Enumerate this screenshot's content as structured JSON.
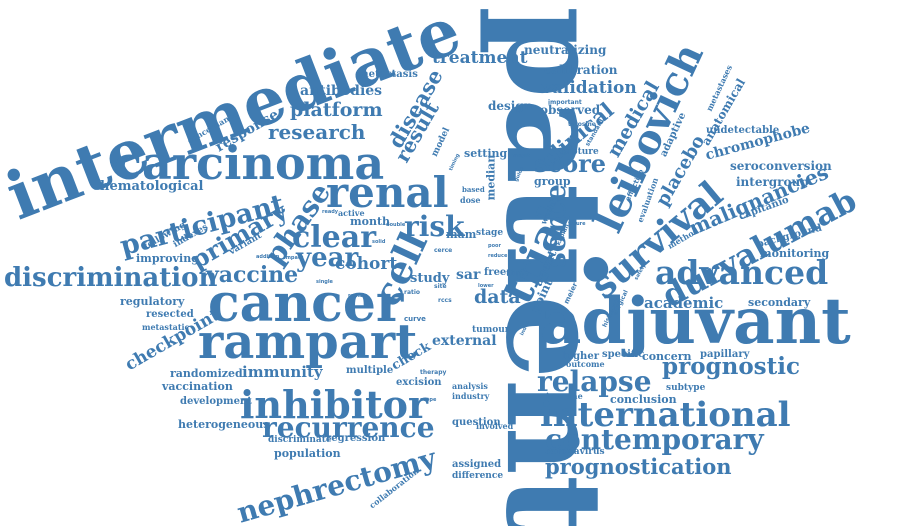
{
  "title": "",
  "color": "#3f7bb1",
  "words": [
    {
      "text": "patient"
    },
    {
      "text": "intermediate"
    },
    {
      "text": "adjuvant"
    },
    {
      "text": "cancer"
    },
    {
      "text": "carcinoma"
    },
    {
      "text": "rampart"
    },
    {
      "text": "renal"
    },
    {
      "text": "trial"
    },
    {
      "text": "leibovich"
    },
    {
      "text": "international"
    },
    {
      "text": "inhibitor"
    },
    {
      "text": "survival"
    },
    {
      "text": "durvalumab"
    },
    {
      "text": "advanced"
    },
    {
      "text": "recurrence"
    },
    {
      "text": "contemporary"
    },
    {
      "text": "nephrectomy"
    },
    {
      "text": "relapse"
    },
    {
      "text": "prognostic"
    },
    {
      "text": "prognostication"
    },
    {
      "text": "discrimination"
    },
    {
      "text": "participant"
    },
    {
      "text": "cell"
    },
    {
      "text": "primary"
    },
    {
      "text": "phase"
    },
    {
      "text": "clear"
    },
    {
      "text": "year"
    },
    {
      "text": "risk"
    },
    {
      "text": "sorce"
    },
    {
      "text": "score"
    },
    {
      "text": "vaccine"
    },
    {
      "text": "research"
    },
    {
      "text": "platform"
    },
    {
      "text": "result"
    },
    {
      "text": "disease"
    },
    {
      "text": "treatment"
    },
    {
      "text": "validation"
    },
    {
      "text": "clinical"
    },
    {
      "text": "medical"
    },
    {
      "text": "placebo"
    },
    {
      "text": "malignancies"
    },
    {
      "text": "data"
    },
    {
      "text": "cohort"
    },
    {
      "text": "academic"
    },
    {
      "text": "checkpoint"
    },
    {
      "text": "immunity"
    },
    {
      "text": "hematological"
    },
    {
      "text": "antibodies"
    },
    {
      "text": "metastasis"
    },
    {
      "text": "response"
    },
    {
      "text": "neutralizing"
    },
    {
      "text": "calibration"
    },
    {
      "text": "design"
    },
    {
      "text": "observed"
    },
    {
      "text": "chromophobe"
    },
    {
      "text": "seroconversion"
    },
    {
      "text": "intergroup"
    },
    {
      "text": "undetectable"
    },
    {
      "text": "anatomical"
    },
    {
      "text": "metastases"
    },
    {
      "text": "adaptive"
    },
    {
      "text": "capitanio"
    },
    {
      "text": "monitoring"
    },
    {
      "text": "background"
    },
    {
      "text": "secondary"
    },
    {
      "text": "concern"
    },
    {
      "text": "papillary"
    },
    {
      "text": "subtype"
    },
    {
      "text": "conclusion"
    },
    {
      "text": "improving"
    },
    {
      "text": "regulatory"
    },
    {
      "text": "resected"
    },
    {
      "text": "metastatic"
    },
    {
      "text": "randomized"
    },
    {
      "text": "vaccination"
    },
    {
      "text": "development"
    },
    {
      "text": "heterogeneous"
    },
    {
      "text": "population"
    },
    {
      "text": "discriminate"
    },
    {
      "text": "regression"
    },
    {
      "text": "question"
    },
    {
      "text": "assigned"
    },
    {
      "text": "difference"
    },
    {
      "text": "coronavirus"
    },
    {
      "text": "collaboration"
    },
    {
      "text": "external"
    },
    {
      "text": "check"
    },
    {
      "text": "excision"
    },
    {
      "text": "multiple"
    },
    {
      "text": "tumour"
    },
    {
      "text": "study"
    },
    {
      "text": "sar"
    },
    {
      "text": "free"
    },
    {
      "text": "time"
    },
    {
      "text": "month"
    },
    {
      "text": "active"
    },
    {
      "text": "mam"
    },
    {
      "text": "stage"
    },
    {
      "text": "setting"
    },
    {
      "text": "median"
    },
    {
      "text": "group"
    },
    {
      "text": "capture"
    },
    {
      "text": "outcome"
    },
    {
      "text": "higher"
    },
    {
      "text": "specific"
    },
    {
      "text": "analysis"
    },
    {
      "text": "industry"
    },
    {
      "text": "involved"
    },
    {
      "text": "immune"
    },
    {
      "text": "point"
    },
    {
      "text": "agent"
    },
    {
      "text": "weekly"
    },
    {
      "text": "concordance"
    },
    {
      "text": "following"
    },
    {
      "text": "indexes"
    },
    {
      "text": "variant"
    },
    {
      "text": "model"
    },
    {
      "text": "dose"
    },
    {
      "text": "based"
    },
    {
      "text": "important"
    },
    {
      "text": "tyrosine"
    },
    {
      "text": "standard"
    },
    {
      "text": "effective"
    },
    {
      "text": "evaluation"
    },
    {
      "text": "method"
    },
    {
      "text": "curve"
    },
    {
      "text": "ratio"
    },
    {
      "text": "site"
    },
    {
      "text": "cerce"
    },
    {
      "text": "rccs"
    },
    {
      "text": "histology"
    },
    {
      "text": "surgical"
    },
    {
      "text": "meier"
    },
    {
      "text": "kaplan"
    },
    {
      "text": "addition"
    },
    {
      "text": "impact"
    },
    {
      "text": "ready"
    },
    {
      "text": "solid"
    },
    {
      "text": "double"
    },
    {
      "text": "remain"
    },
    {
      "text": "single"
    },
    {
      "text": "therapy"
    },
    {
      "text": "poor"
    },
    {
      "text": "index"
    },
    {
      "text": "lower"
    },
    {
      "text": "target"
    },
    {
      "text": "timing"
    },
    {
      "text": "future"
    },
    {
      "text": "reduce"
    },
    {
      "text": "guide"
    },
    {
      "text": "scope"
    },
    {
      "text": "safety"
    }
  ]
}
